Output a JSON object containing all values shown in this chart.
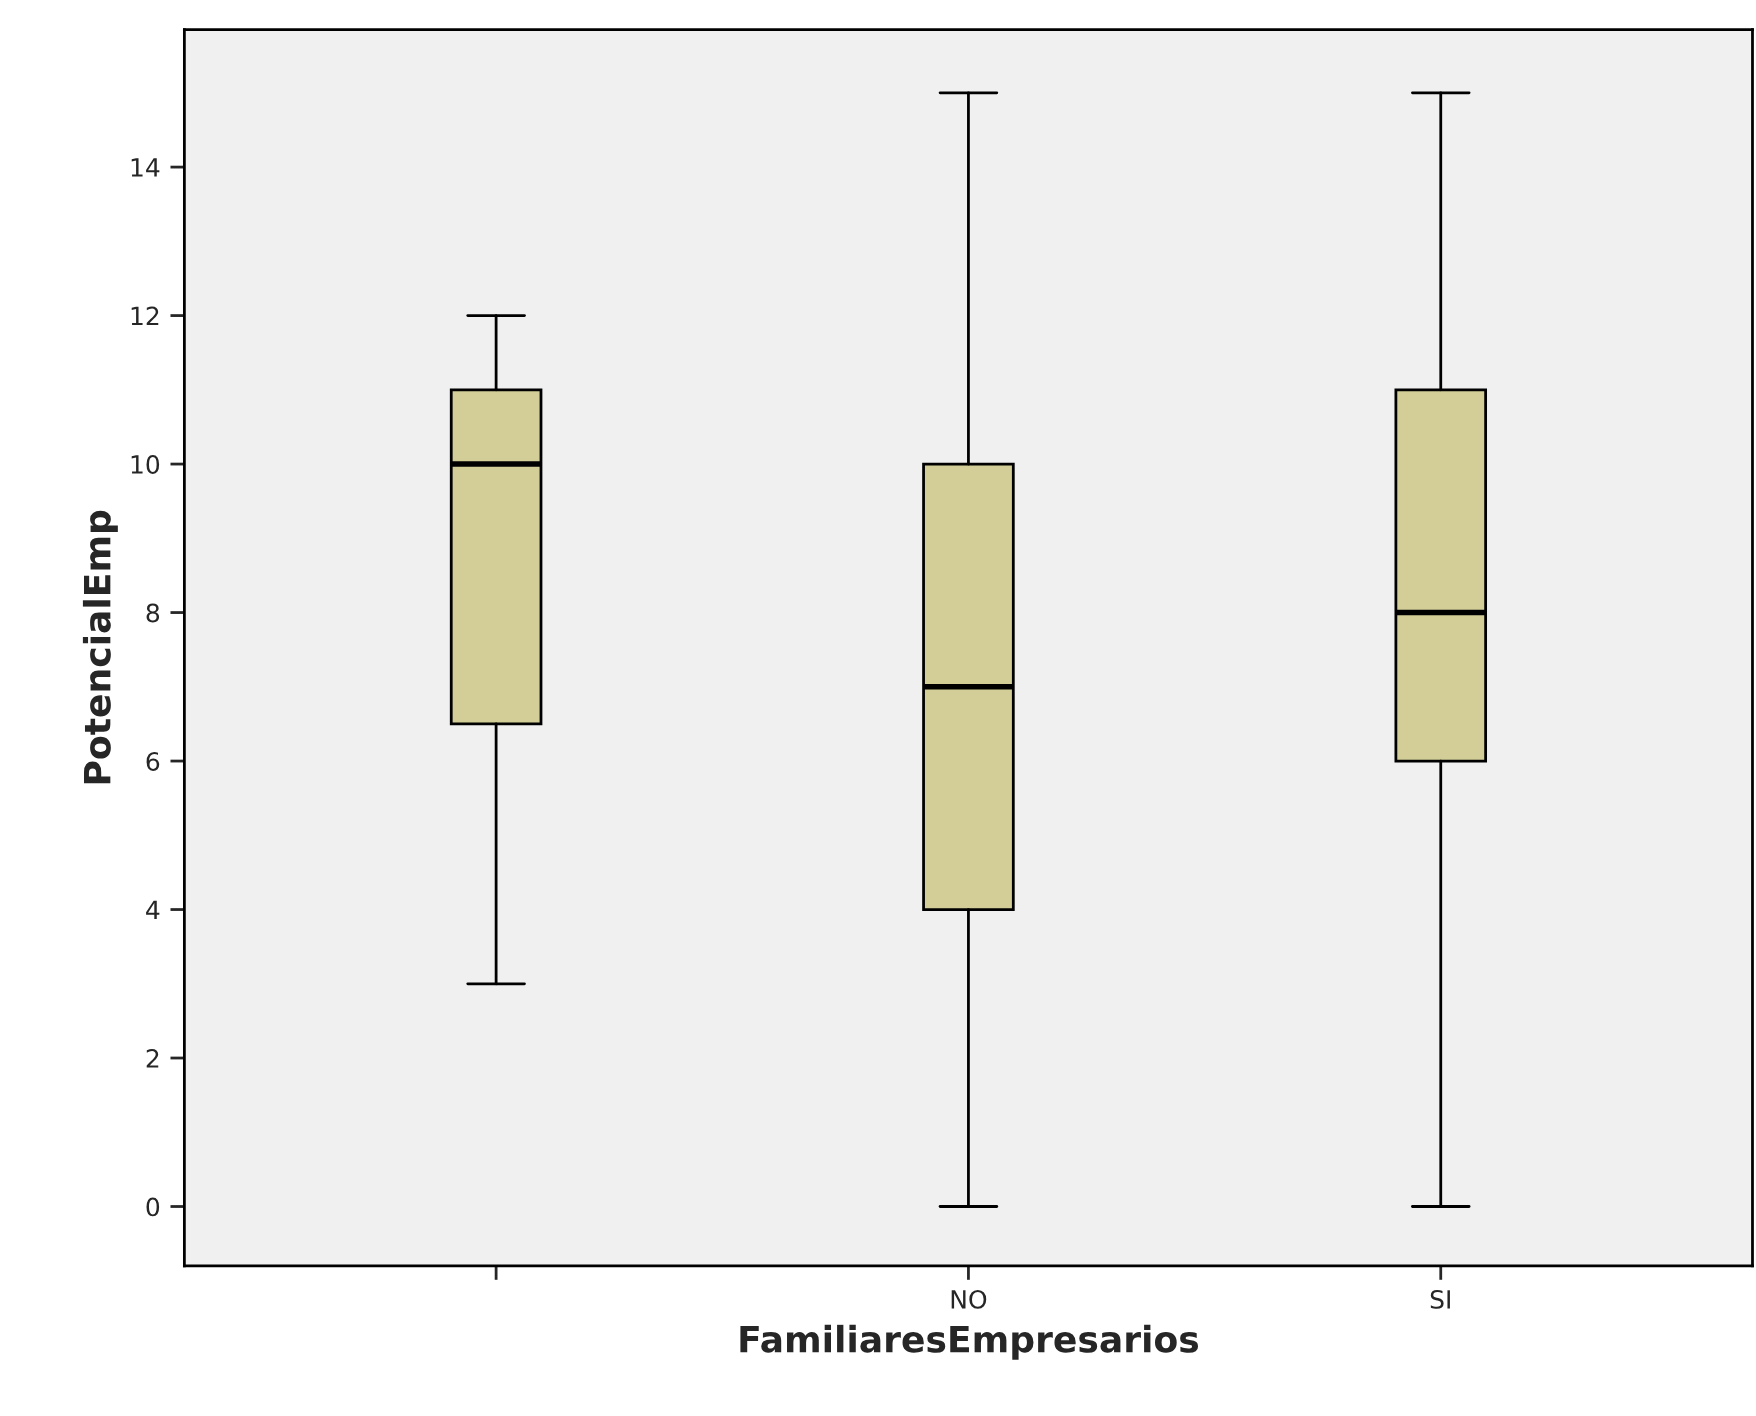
{
  "chart_data": {
    "type": "box",
    "xlabel": "FamiliaresEmpresarios",
    "ylabel": "PotencialEmp",
    "categories": [
      null,
      "NO",
      "SI"
    ],
    "boxes": [
      {
        "low": 3,
        "q1": 6.5,
        "median": 10,
        "q3": 11,
        "high": 12
      },
      {
        "low": 0,
        "q1": 4,
        "median": 7,
        "q3": 10,
        "high": 15
      },
      {
        "low": 0,
        "q1": 6,
        "median": 8,
        "q3": 11,
        "high": 15
      }
    ],
    "color": "#d3ce97",
    "ylim": [
      -0.8,
      15.85
    ],
    "yticks": [
      0,
      2,
      4,
      6,
      8,
      10,
      12,
      14
    ],
    "grid": false
  }
}
